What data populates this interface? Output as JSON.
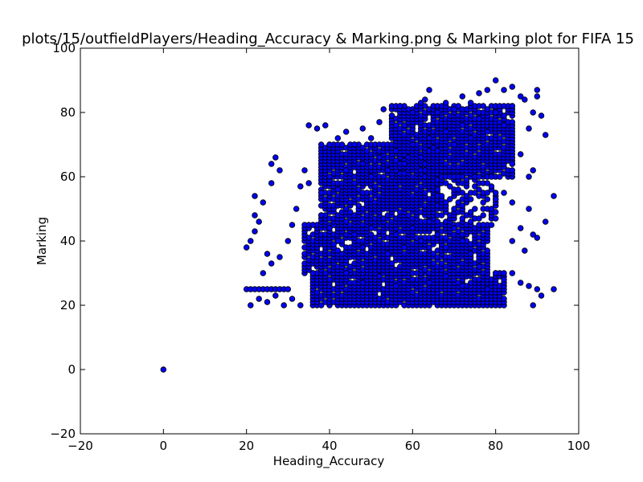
{
  "chart_data": {
    "type": "scatter",
    "title": "plots/15/outfieldPlayers/Heading_Accuracy & Marking.png & Marking plot for FIFA 15",
    "xlabel": "Heading_Accuracy",
    "ylabel": "Marking",
    "xlim": [
      -20,
      100
    ],
    "ylim": [
      -20,
      100
    ],
    "xticks": [
      "−20",
      "0",
      "20",
      "40",
      "60",
      "80",
      "100"
    ],
    "yticks": [
      "−20",
      "0",
      "20",
      "40",
      "60",
      "80",
      "100"
    ],
    "grid": false,
    "colors": {
      "point_fill": "#0000ff",
      "point_edge": "#000000"
    },
    "series": [
      {
        "points": [
          [
            0,
            0
          ],
          [
            20,
            25
          ],
          [
            21,
            25
          ],
          [
            22,
            25
          ],
          [
            23,
            25
          ],
          [
            24,
            25
          ],
          [
            25,
            25
          ],
          [
            26,
            25
          ],
          [
            27,
            25
          ],
          [
            28,
            25
          ],
          [
            29,
            25
          ],
          [
            30,
            25
          ],
          [
            20,
            38
          ],
          [
            21,
            40
          ],
          [
            22,
            43
          ],
          [
            22,
            48
          ],
          [
            22,
            54
          ],
          [
            23,
            46
          ],
          [
            24,
            52
          ],
          [
            25,
            36
          ],
          [
            26,
            58
          ],
          [
            26,
            64
          ],
          [
            27,
            66
          ],
          [
            28,
            62
          ],
          [
            21,
            20
          ],
          [
            23,
            22
          ],
          [
            25,
            21
          ],
          [
            27,
            23
          ],
          [
            29,
            20
          ],
          [
            31,
            22
          ],
          [
            33,
            20
          ],
          [
            24,
            30
          ],
          [
            26,
            33
          ],
          [
            28,
            35
          ],
          [
            30,
            40
          ],
          [
            31,
            45
          ],
          [
            32,
            50
          ],
          [
            33,
            57
          ],
          [
            34,
            62
          ],
          [
            35,
            58
          ],
          [
            35,
            76
          ],
          [
            37,
            75
          ],
          [
            39,
            76
          ],
          [
            40,
            70
          ],
          [
            42,
            72
          ],
          [
            44,
            74
          ],
          [
            46,
            70
          ],
          [
            48,
            75
          ],
          [
            50,
            72
          ],
          [
            52,
            77
          ],
          [
            53,
            81
          ],
          [
            55,
            79
          ],
          [
            57,
            82
          ],
          [
            58,
            76
          ],
          [
            60,
            80
          ],
          [
            62,
            83
          ],
          [
            63,
            84
          ],
          [
            64,
            87
          ],
          [
            66,
            80
          ],
          [
            68,
            83
          ],
          [
            70,
            81
          ],
          [
            72,
            85
          ],
          [
            74,
            83
          ],
          [
            76,
            86
          ],
          [
            78,
            87
          ],
          [
            80,
            90
          ],
          [
            82,
            87
          ],
          [
            84,
            88
          ],
          [
            86,
            85
          ],
          [
            87,
            84
          ],
          [
            88,
            75
          ],
          [
            89,
            80
          ],
          [
            90,
            85
          ],
          [
            90,
            87
          ],
          [
            91,
            79
          ],
          [
            92,
            73
          ],
          [
            84,
            64
          ],
          [
            86,
            67
          ],
          [
            88,
            60
          ],
          [
            89,
            62
          ],
          [
            80,
            53
          ],
          [
            82,
            55
          ],
          [
            84,
            52
          ],
          [
            84,
            40
          ],
          [
            86,
            44
          ],
          [
            88,
            50
          ],
          [
            87,
            37
          ],
          [
            89,
            42
          ],
          [
            90,
            41
          ],
          [
            92,
            46
          ],
          [
            94,
            54
          ],
          [
            80,
            30
          ],
          [
            82,
            28
          ],
          [
            84,
            30
          ],
          [
            86,
            27
          ],
          [
            88,
            26
          ],
          [
            90,
            25
          ],
          [
            91,
            23
          ],
          [
            94,
            25
          ],
          [
            89,
            20
          ],
          [
            36,
            45
          ],
          [
            38,
            48
          ],
          [
            40,
            44
          ],
          [
            42,
            40
          ],
          [
            44,
            46
          ],
          [
            46,
            42
          ],
          [
            48,
            38
          ],
          [
            50,
            44
          ],
          [
            52,
            40
          ],
          [
            54,
            36
          ],
          [
            56,
            42
          ],
          [
            58,
            38
          ],
          [
            60,
            44
          ],
          [
            62,
            40
          ],
          [
            64,
            46
          ],
          [
            66,
            42
          ],
          [
            68,
            38
          ],
          [
            70,
            44
          ],
          [
            72,
            40
          ],
          [
            74,
            36
          ],
          [
            76,
            32
          ],
          [
            38,
            55
          ],
          [
            40,
            60
          ],
          [
            42,
            56
          ],
          [
            44,
            62
          ],
          [
            46,
            58
          ],
          [
            48,
            64
          ],
          [
            50,
            60
          ],
          [
            52,
            66
          ],
          [
            54,
            62
          ],
          [
            56,
            68
          ],
          [
            58,
            64
          ],
          [
            60,
            70
          ],
          [
            62,
            66
          ],
          [
            64,
            72
          ],
          [
            66,
            68
          ],
          [
            68,
            74
          ],
          [
            70,
            70
          ],
          [
            72,
            76
          ],
          [
            74,
            72
          ],
          [
            76,
            78
          ],
          [
            78,
            74
          ],
          [
            80,
            80
          ],
          [
            82,
            76
          ],
          [
            84,
            82
          ],
          [
            36,
            30
          ],
          [
            40,
            28
          ],
          [
            44,
            30
          ],
          [
            48,
            27
          ],
          [
            52,
            29
          ],
          [
            56,
            26
          ],
          [
            60,
            28
          ],
          [
            64,
            27
          ],
          [
            68,
            29
          ],
          [
            72,
            26
          ],
          [
            76,
            28
          ],
          [
            78,
            25
          ]
        ]
      }
    ],
    "clusters": [
      {
        "x": [
          36,
          82
        ],
        "y": [
          20,
          30
        ],
        "density": 0.9
      },
      {
        "x": [
          34,
          78
        ],
        "y": [
          30,
          45
        ],
        "density": 0.8
      },
      {
        "x": [
          38,
          66
        ],
        "y": [
          45,
          70
        ],
        "density": 0.85
      },
      {
        "x": [
          55,
          84
        ],
        "y": [
          60,
          82
        ],
        "density": 0.85
      },
      {
        "x": [
          66,
          80
        ],
        "y": [
          45,
          60
        ],
        "density": 0.5
      }
    ]
  }
}
